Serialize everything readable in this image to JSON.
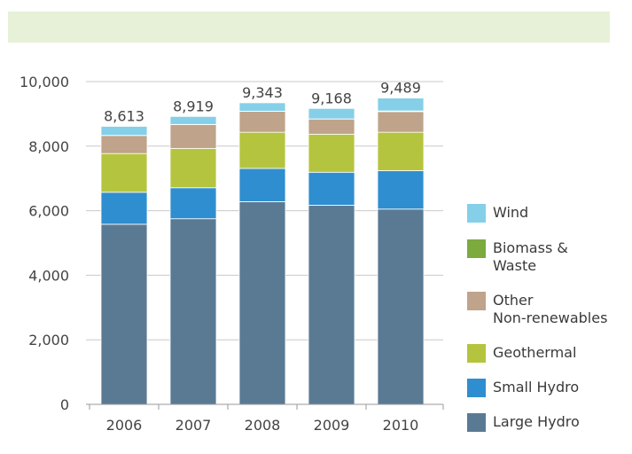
{
  "header_band": {
    "text": "",
    "color": "#e7f1d7"
  },
  "chart_data": {
    "type": "bar",
    "stacked": true,
    "title": "",
    "xlabel": "",
    "ylabel": "",
    "categories": [
      "2006",
      "2007",
      "2008",
      "2009",
      "2010"
    ],
    "ylim": [
      0,
      10000
    ],
    "yticks": [
      0,
      2000,
      4000,
      6000,
      8000,
      10000
    ],
    "ytick_labels": [
      "0",
      "2,000",
      "4,000",
      "6,000",
      "8,000",
      "10,000"
    ],
    "grid": true,
    "legend_position": "right",
    "totals": [
      "8,613",
      "8,919",
      "9,343",
      "9,168",
      "9,489"
    ],
    "series": [
      {
        "name": "Large Hydro",
        "color": "#5a7a94",
        "values": [
          5580,
          5750,
          6280,
          6170,
          6050
        ]
      },
      {
        "name": "Small Hydro",
        "color": "#2f8ecf",
        "values": [
          990,
          960,
          1030,
          1020,
          1190
        ]
      },
      {
        "name": "Geothermal",
        "color": "#b5c43f",
        "values": [
          1200,
          1220,
          1120,
          1180,
          1190
        ]
      },
      {
        "name": "Other\nNon-renewables",
        "color": "#bfa38a",
        "values": [
          560,
          740,
          650,
          470,
          640
        ]
      },
      {
        "name": "Biomass &\nWaste",
        "color": "#7caa3f",
        "values": [
          3,
          3,
          3,
          3,
          20
        ]
      },
      {
        "name": "Wind",
        "color": "#85cfe8",
        "values": [
          280,
          246,
          260,
          325,
          399
        ]
      }
    ],
    "legend_order": [
      "Wind",
      "Biomass &\nWaste",
      "Other\nNon-renewables",
      "Geothermal",
      "Small Hydro",
      "Large Hydro"
    ]
  }
}
